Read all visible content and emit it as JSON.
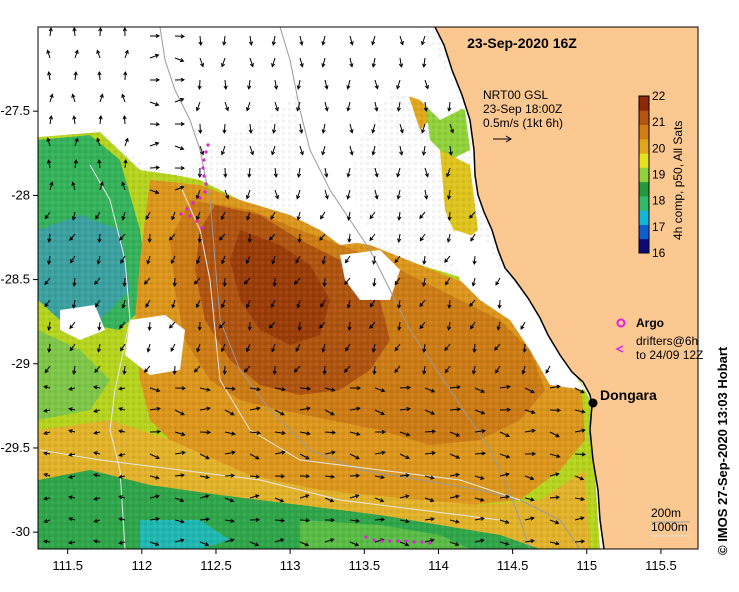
{
  "map": {
    "timestamp": "23-Sep-2020 16Z",
    "current_source": {
      "line1": "NRT00 GSL",
      "line2": "23-Sep 18:00Z",
      "scale_label": "0.5m/s (1kt 6h)"
    },
    "colorbar": {
      "title": "4h comp, p50, All Sats",
      "ticks": [
        "22",
        "21",
        "20",
        "19",
        "18",
        "17",
        "16"
      ],
      "min": 16,
      "max": 22,
      "colors": [
        "#0c0a7a",
        "#0d5fd0",
        "#12b6d8",
        "#30b968",
        "#1f9a3c",
        "#8fd23a",
        "#e6e21e",
        "#e0a61c",
        "#d27e12",
        "#b45410",
        "#8c2a06"
      ]
    },
    "legend": {
      "argo_label": "Argo",
      "drifters_label_1": "drifters@6h",
      "drifters_label_2": "to 24/09 12Z"
    },
    "place": {
      "name": "Dongara",
      "lon": 114.93,
      "lat": -29.25
    },
    "isobaths": {
      "label_1": "200m",
      "label_2": "1000m"
    },
    "credit": "© IMOS 27-Sep-2020 13:03 Hobart",
    "x_ticks": [
      "111.5",
      "112",
      "112.5",
      "113",
      "113.5",
      "114",
      "114.5",
      "115",
      "115.5"
    ],
    "y_ticks": [
      "-27.5",
      "-28",
      "-28.5",
      "-29",
      "-29.5",
      "-30"
    ],
    "extent": {
      "lon_min": 111.3,
      "lon_max": 115.75,
      "lat_min": -30.1,
      "lat_max": -27.0
    },
    "colors": {
      "land": "#fbc892",
      "argo": "#e11ee0",
      "coast": "#000000"
    }
  }
}
